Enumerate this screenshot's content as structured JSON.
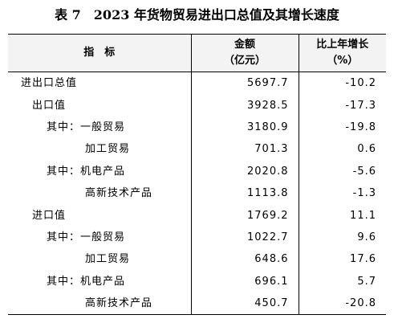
{
  "title": "表 7　2023 年货物贸易进出口总值及其增长速度",
  "header": {
    "indicator": "指　标",
    "amount_line1": "金额",
    "amount_line2": "（亿元）",
    "growth_line1": "比上年增长",
    "growth_line2": "（%）"
  },
  "rows": [
    {
      "label": "进出口总值",
      "amount": "5697.7",
      "growth": "-10.2"
    },
    {
      "label": "出口值",
      "amount": "3928.5",
      "growth": "-17.3"
    },
    {
      "label": "其中：一般贸易",
      "amount": "3180.9",
      "growth": "-19.8"
    },
    {
      "label": "加工贸易",
      "amount": "701.3",
      "growth": "0.6"
    },
    {
      "label": "其中：机电产品",
      "amount": "2020.8",
      "growth": "-5.6"
    },
    {
      "label": "高新技术产品",
      "amount": "1113.8",
      "growth": "-1.3"
    },
    {
      "label": "进口值",
      "amount": "1769.2",
      "growth": "11.1"
    },
    {
      "label": "其中：一般贸易",
      "amount": "1022.7",
      "growth": "9.6"
    },
    {
      "label": "加工贸易",
      "amount": "648.6",
      "growth": "17.6"
    },
    {
      "label": "其中：机电产品",
      "amount": "696.1",
      "growth": "5.7"
    },
    {
      "label": "高新技术产品",
      "amount": "450.7",
      "growth": "-20.8"
    }
  ]
}
